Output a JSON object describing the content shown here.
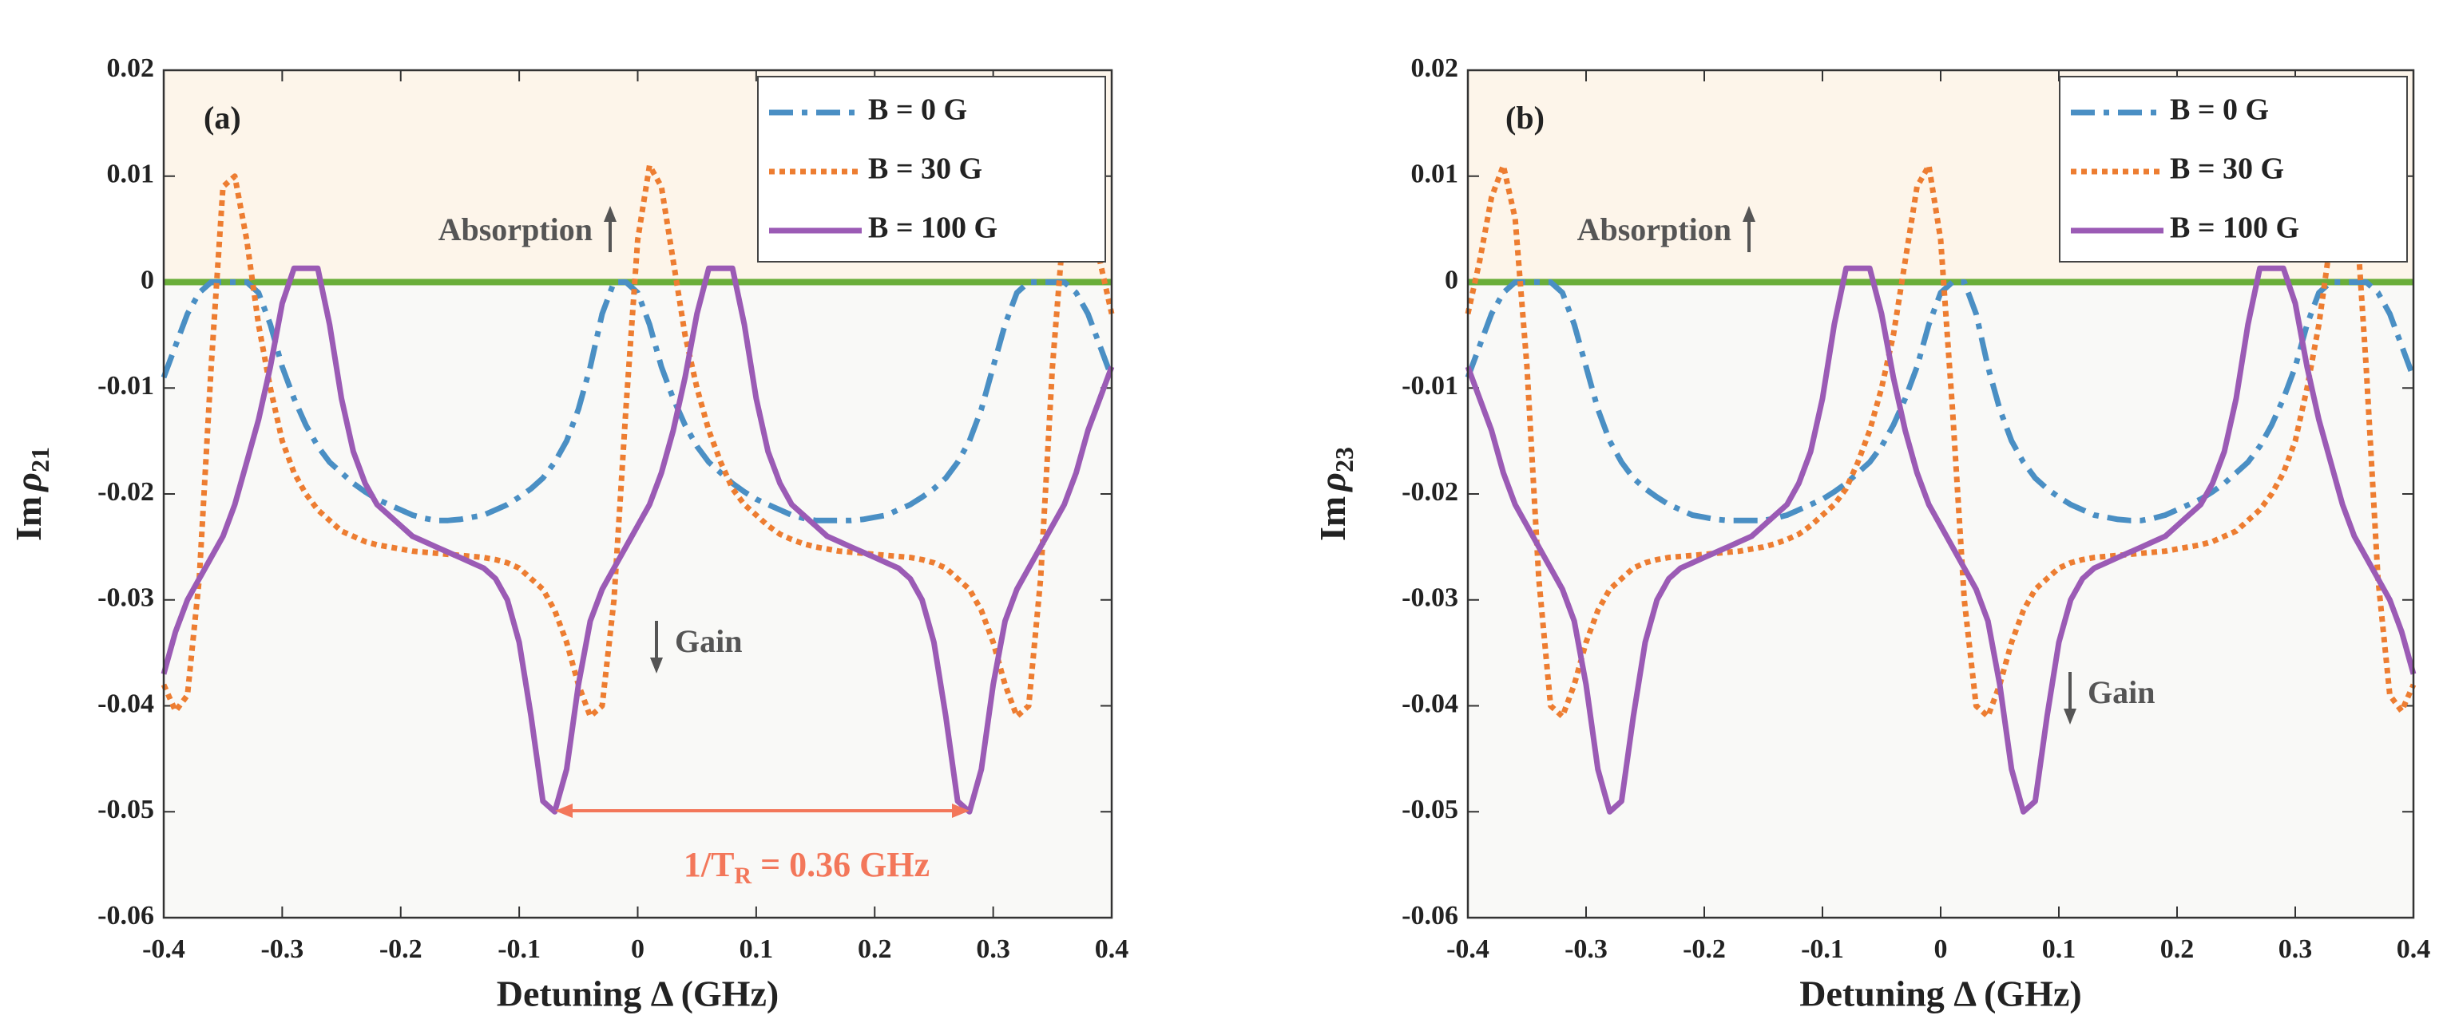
{
  "chart_data": [
    {
      "type": "line",
      "panel_label": "(a)",
      "xlabel": "Detuning Δ (GHz)",
      "ylabel": {
        "prefix": "Im",
        "symbol": "ρ",
        "sub": "21"
      },
      "annotations": [
        "Absorption",
        "Gain"
      ],
      "period_label": {
        "prefix": "1/T",
        "sub": "R",
        "suffix": " = 0.36 GHz"
      },
      "xlim": [
        -0.4,
        0.4
      ],
      "xticks": [
        -0.4,
        -0.3,
        -0.2,
        -0.1,
        0,
        0.1,
        0.2,
        0.3,
        0.4
      ],
      "ylim": [
        -0.06,
        0.02
      ],
      "yticks": [
        -0.06,
        -0.05,
        -0.04,
        -0.03,
        -0.02,
        -0.01,
        0,
        0.01,
        0.02
      ],
      "legend": "upper right",
      "x": [
        -0.4,
        -0.39,
        -0.38,
        -0.37,
        -0.36,
        -0.35,
        -0.34,
        -0.33,
        -0.32,
        -0.31,
        -0.3,
        -0.29,
        -0.28,
        -0.27,
        -0.26,
        -0.25,
        -0.24,
        -0.23,
        -0.22,
        -0.21,
        -0.2,
        -0.19,
        -0.18,
        -0.17,
        -0.16,
        -0.15,
        -0.14,
        -0.13,
        -0.12,
        -0.11,
        -0.1,
        -0.09,
        -0.08,
        -0.07,
        -0.06,
        -0.05,
        -0.04,
        -0.03,
        -0.02,
        -0.01,
        0,
        0.01,
        0.02,
        0.03,
        0.04,
        0.05,
        0.06,
        0.07,
        0.08,
        0.09,
        0.1,
        0.11,
        0.12,
        0.13,
        0.14,
        0.15,
        0.16,
        0.17,
        0.18,
        0.19,
        0.2,
        0.21,
        0.22,
        0.23,
        0.24,
        0.25,
        0.26,
        0.27,
        0.28,
        0.29,
        0.3,
        0.31,
        0.32,
        0.33,
        0.34,
        0.35,
        0.36,
        0.37,
        0.38,
        0.39,
        0.4
      ],
      "series": [
        {
          "name": "B = 0 G",
          "color": "#4a8fc4",
          "style": "dashdot",
          "values": [
            -0.009,
            -0.006,
            -0.003,
            -0.001,
            0,
            0,
            0,
            0,
            -0.001,
            -0.004,
            -0.008,
            -0.011,
            -0.0135,
            -0.0155,
            -0.017,
            -0.018,
            -0.019,
            -0.0198,
            -0.0205,
            -0.021,
            -0.0215,
            -0.022,
            -0.0223,
            -0.0225,
            -0.0225,
            -0.0224,
            -0.0222,
            -0.022,
            -0.0215,
            -0.021,
            -0.0203,
            -0.0195,
            -0.0185,
            -0.017,
            -0.015,
            -0.012,
            -0.008,
            -0.003,
            0,
            0,
            -0.001,
            -0.004,
            -0.008,
            -0.011,
            -0.0135,
            -0.0155,
            -0.017,
            -0.018,
            -0.019,
            -0.0198,
            -0.0205,
            -0.021,
            -0.0215,
            -0.022,
            -0.0223,
            -0.0225,
            -0.0225,
            -0.0225,
            -0.0225,
            -0.0224,
            -0.0222,
            -0.022,
            -0.0215,
            -0.021,
            -0.0203,
            -0.0195,
            -0.0185,
            -0.017,
            -0.015,
            -0.012,
            -0.008,
            -0.004,
            -0.001,
            0,
            0,
            0,
            0,
            -0.001,
            -0.003,
            -0.006,
            -0.009
          ]
        },
        {
          "name": "B = 30 G",
          "color": "#ed7d31",
          "style": "dotted",
          "values": [
            -0.038,
            -0.0405,
            -0.039,
            -0.028,
            -0.008,
            0.009,
            0.01,
            0.004,
            -0.004,
            -0.01,
            -0.015,
            -0.018,
            -0.02,
            -0.0215,
            -0.0225,
            -0.0235,
            -0.024,
            -0.0245,
            -0.0248,
            -0.025,
            -0.0252,
            -0.0254,
            -0.0255,
            -0.0256,
            -0.0257,
            -0.0258,
            -0.0259,
            -0.026,
            -0.0262,
            -0.0265,
            -0.027,
            -0.028,
            -0.029,
            -0.031,
            -0.034,
            -0.038,
            -0.041,
            -0.04,
            -0.03,
            -0.012,
            0.004,
            0.011,
            0.009,
            0.002,
            -0.005,
            -0.01,
            -0.014,
            -0.017,
            -0.0195,
            -0.021,
            -0.022,
            -0.023,
            -0.0238,
            -0.0243,
            -0.0247,
            -0.025,
            -0.0252,
            -0.0254,
            -0.0255,
            -0.0256,
            -0.0257,
            -0.0258,
            -0.0259,
            -0.026,
            -0.0262,
            -0.0265,
            -0.027,
            -0.028,
            -0.029,
            -0.031,
            -0.034,
            -0.038,
            -0.041,
            -0.04,
            -0.028,
            -0.008,
            0.006,
            0.011,
            0.008,
            0.002,
            -0.003
          ]
        },
        {
          "name": "B = 100 G",
          "color": "#9b5bb5",
          "style": "solid",
          "values": [
            -0.037,
            -0.033,
            -0.03,
            -0.028,
            -0.026,
            -0.024,
            -0.021,
            -0.017,
            -0.013,
            -0.008,
            -0.002,
            0.0013,
            0.0013,
            0.0013,
            -0.004,
            -0.011,
            -0.016,
            -0.019,
            -0.021,
            -0.022,
            -0.023,
            -0.024,
            -0.0245,
            -0.025,
            -0.0255,
            -0.026,
            -0.0265,
            -0.027,
            -0.028,
            -0.03,
            -0.034,
            -0.041,
            -0.049,
            -0.05,
            -0.046,
            -0.038,
            -0.032,
            -0.029,
            -0.027,
            -0.025,
            -0.023,
            -0.021,
            -0.018,
            -0.014,
            -0.009,
            -0.003,
            0.0013,
            0.0013,
            0.0013,
            -0.004,
            -0.011,
            -0.016,
            -0.019,
            -0.021,
            -0.022,
            -0.023,
            -0.024,
            -0.0245,
            -0.025,
            -0.0255,
            -0.026,
            -0.0265,
            -0.027,
            -0.028,
            -0.03,
            -0.034,
            -0.041,
            -0.049,
            -0.05,
            -0.046,
            -0.038,
            -0.032,
            -0.029,
            -0.027,
            -0.025,
            -0.023,
            -0.021,
            -0.018,
            -0.014,
            -0.011,
            -0.008
          ]
        }
      ]
    },
    {
      "type": "line",
      "panel_label": "(b)",
      "xlabel": "Detuning Δ (GHz)",
      "ylabel": {
        "prefix": "Im",
        "symbol": "ρ",
        "sub": "23"
      },
      "annotations": [
        "Absorption",
        "Gain"
      ],
      "xlim": [
        -0.4,
        0.4
      ],
      "xticks": [
        -0.4,
        -0.3,
        -0.2,
        -0.1,
        0,
        0.1,
        0.2,
        0.3,
        0.4
      ],
      "ylim": [
        -0.06,
        0.02
      ],
      "yticks": [
        -0.06,
        -0.05,
        -0.04,
        -0.03,
        -0.02,
        -0.01,
        0,
        0.01,
        0.02
      ],
      "legend": "upper right",
      "x": [
        -0.4,
        -0.39,
        -0.38,
        -0.37,
        -0.36,
        -0.35,
        -0.34,
        -0.33,
        -0.32,
        -0.31,
        -0.3,
        -0.29,
        -0.28,
        -0.27,
        -0.26,
        -0.25,
        -0.24,
        -0.23,
        -0.22,
        -0.21,
        -0.2,
        -0.19,
        -0.18,
        -0.17,
        -0.16,
        -0.15,
        -0.14,
        -0.13,
        -0.12,
        -0.11,
        -0.1,
        -0.09,
        -0.08,
        -0.07,
        -0.06,
        -0.05,
        -0.04,
        -0.03,
        -0.02,
        -0.01,
        0,
        0.01,
        0.02,
        0.03,
        0.04,
        0.05,
        0.06,
        0.07,
        0.08,
        0.09,
        0.1,
        0.11,
        0.12,
        0.13,
        0.14,
        0.15,
        0.16,
        0.17,
        0.18,
        0.19,
        0.2,
        0.21,
        0.22,
        0.23,
        0.24,
        0.25,
        0.26,
        0.27,
        0.28,
        0.29,
        0.3,
        0.31,
        0.32,
        0.33,
        0.34,
        0.35,
        0.36,
        0.37,
        0.38,
        0.39,
        0.4
      ],
      "series": [
        {
          "name": "B = 0 G",
          "color": "#4a8fc4",
          "style": "dashdot",
          "values": [
            -0.009,
            -0.006,
            -0.003,
            -0.001,
            0,
            0,
            0,
            0,
            -0.001,
            -0.004,
            -0.008,
            -0.012,
            -0.015,
            -0.017,
            -0.0185,
            -0.0195,
            -0.0203,
            -0.021,
            -0.0215,
            -0.022,
            -0.0222,
            -0.0224,
            -0.0225,
            -0.0225,
            -0.0225,
            -0.0225,
            -0.0223,
            -0.022,
            -0.0215,
            -0.021,
            -0.0205,
            -0.0198,
            -0.019,
            -0.018,
            -0.017,
            -0.0155,
            -0.0135,
            -0.011,
            -0.008,
            -0.004,
            -0.001,
            0,
            0,
            -0.003,
            -0.008,
            -0.012,
            -0.015,
            -0.017,
            -0.0185,
            -0.0195,
            -0.0203,
            -0.021,
            -0.0215,
            -0.022,
            -0.0222,
            -0.0224,
            -0.0225,
            -0.0225,
            -0.0223,
            -0.022,
            -0.0215,
            -0.021,
            -0.0205,
            -0.0198,
            -0.019,
            -0.018,
            -0.017,
            -0.0155,
            -0.0135,
            -0.011,
            -0.008,
            -0.004,
            -0.001,
            0,
            0,
            0,
            0,
            -0.001,
            -0.003,
            -0.006,
            -0.009
          ]
        },
        {
          "name": "B = 30 G",
          "color": "#ed7d31",
          "style": "dotted",
          "values": [
            -0.003,
            0.002,
            0.008,
            0.011,
            0.006,
            -0.008,
            -0.028,
            -0.04,
            -0.041,
            -0.038,
            -0.034,
            -0.031,
            -0.029,
            -0.028,
            -0.027,
            -0.0265,
            -0.0262,
            -0.026,
            -0.0259,
            -0.0258,
            -0.0257,
            -0.0256,
            -0.0255,
            -0.0254,
            -0.0252,
            -0.025,
            -0.0247,
            -0.0243,
            -0.0238,
            -0.023,
            -0.022,
            -0.021,
            -0.0195,
            -0.017,
            -0.014,
            -0.01,
            -0.005,
            0.002,
            0.009,
            0.011,
            0.004,
            -0.012,
            -0.03,
            -0.04,
            -0.041,
            -0.038,
            -0.034,
            -0.031,
            -0.029,
            -0.028,
            -0.027,
            -0.0265,
            -0.0262,
            -0.026,
            -0.0259,
            -0.0258,
            -0.0257,
            -0.0256,
            -0.0255,
            -0.0254,
            -0.0252,
            -0.025,
            -0.0248,
            -0.0245,
            -0.024,
            -0.0235,
            -0.0225,
            -0.0215,
            -0.02,
            -0.018,
            -0.015,
            -0.01,
            -0.004,
            0.004,
            0.01,
            0.009,
            -0.008,
            -0.028,
            -0.039,
            -0.0405,
            -0.038
          ]
        },
        {
          "name": "B = 100 G",
          "color": "#9b5bb5",
          "style": "solid",
          "values": [
            -0.008,
            -0.011,
            -0.014,
            -0.018,
            -0.021,
            -0.023,
            -0.025,
            -0.027,
            -0.029,
            -0.032,
            -0.038,
            -0.046,
            -0.05,
            -0.049,
            -0.041,
            -0.034,
            -0.03,
            -0.028,
            -0.027,
            -0.0265,
            -0.026,
            -0.0255,
            -0.025,
            -0.0245,
            -0.024,
            -0.023,
            -0.022,
            -0.021,
            -0.019,
            -0.016,
            -0.011,
            -0.004,
            0.0013,
            0.0013,
            0.0013,
            -0.003,
            -0.009,
            -0.014,
            -0.018,
            -0.021,
            -0.023,
            -0.025,
            -0.027,
            -0.029,
            -0.032,
            -0.038,
            -0.046,
            -0.05,
            -0.049,
            -0.041,
            -0.034,
            -0.03,
            -0.028,
            -0.027,
            -0.0265,
            -0.026,
            -0.0255,
            -0.025,
            -0.0245,
            -0.024,
            -0.023,
            -0.022,
            -0.021,
            -0.019,
            -0.016,
            -0.011,
            -0.004,
            0.0013,
            0.0013,
            0.0013,
            -0.002,
            -0.008,
            -0.013,
            -0.017,
            -0.021,
            -0.024,
            -0.026,
            -0.028,
            -0.03,
            -0.033,
            -0.037
          ]
        }
      ]
    }
  ]
}
